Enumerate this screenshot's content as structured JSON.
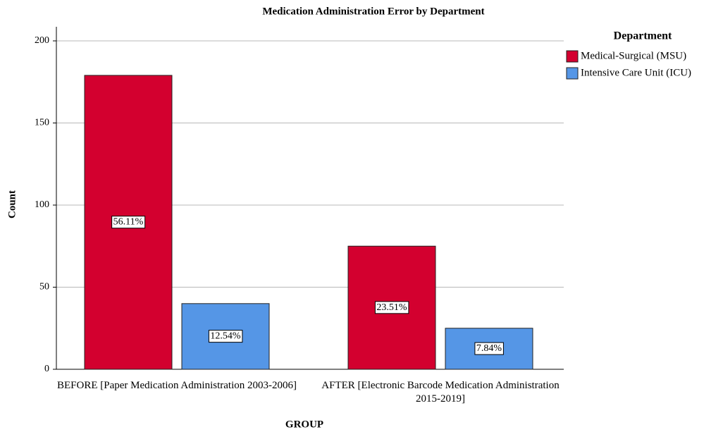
{
  "chart_data": {
    "type": "bar",
    "title": "Medication Administration Error by Department",
    "x_label": "GROUP",
    "y_label": "Count",
    "legend_title": "Department",
    "legend_position": "right",
    "categories": [
      "BEFORE [Paper Medication Administration 2003-2006]",
      "AFTER [Electronic Barcode Medication Administration 2015-2019]"
    ],
    "series": [
      {
        "name": "Medical-Surgical (MSU)",
        "color": "#d3002f",
        "values": [
          179,
          75
        ],
        "value_labels": [
          "56.11%",
          "23.51%"
        ]
      },
      {
        "name": "Intensive Care Unit (ICU)",
        "color": "#5596e6",
        "values": [
          40,
          25
        ],
        "value_labels": [
          "12.54%",
          "7.84%"
        ]
      }
    ],
    "ylim": [
      0,
      200
    ],
    "yticks": [
      0,
      50,
      100,
      150,
      200
    ],
    "grid": true
  }
}
